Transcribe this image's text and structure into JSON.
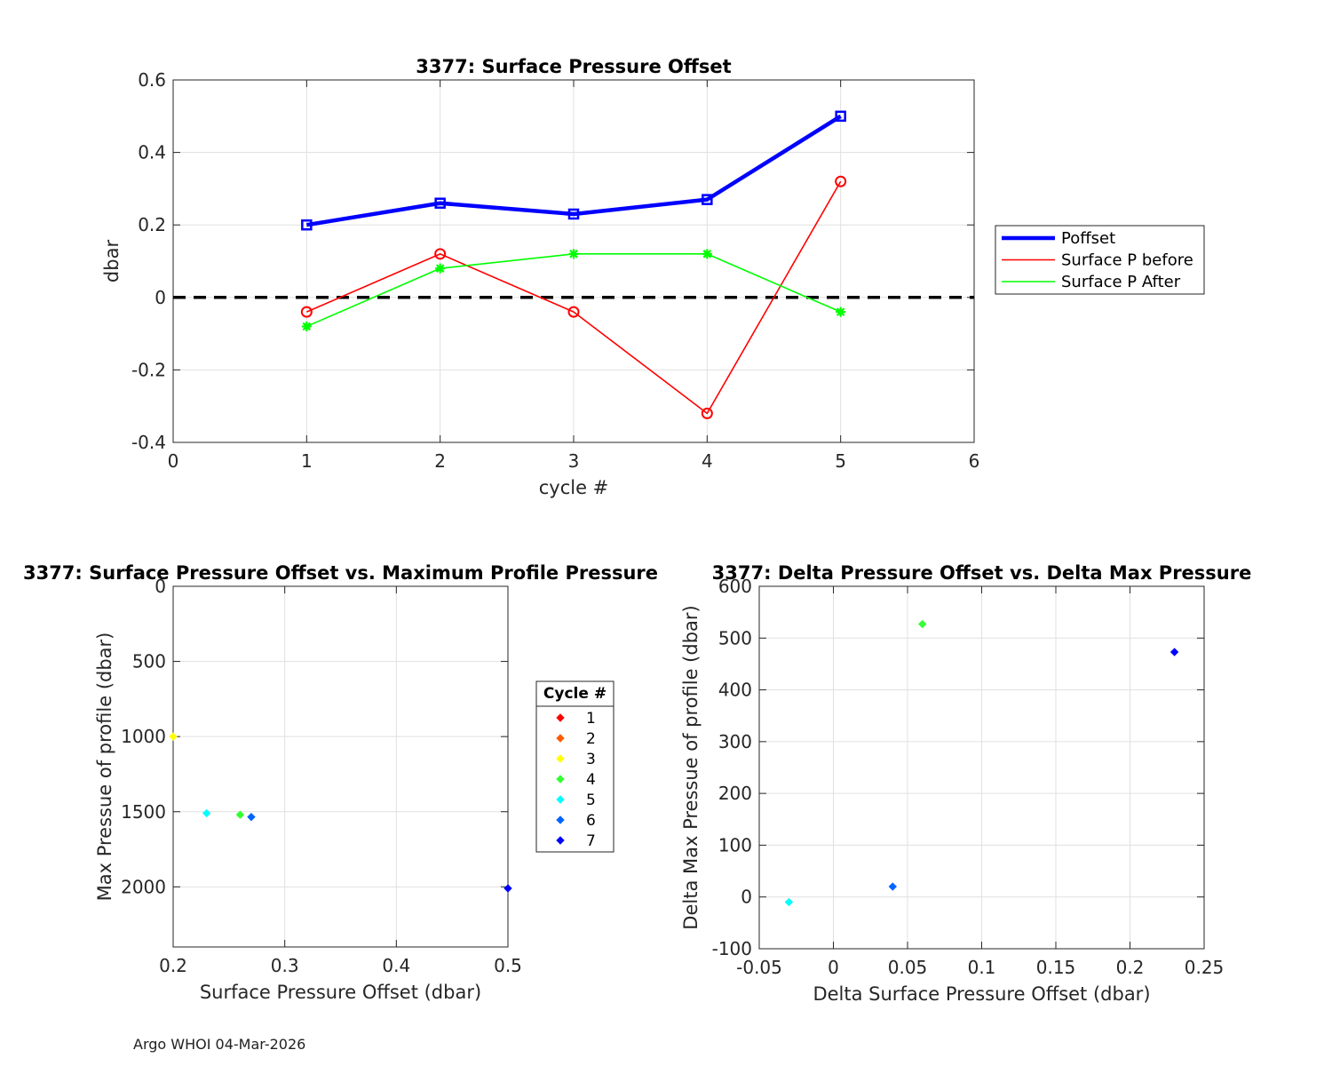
{
  "footer": "Argo WHOI 04-Mar-2026",
  "chart_data": [
    {
      "type": "line",
      "title": "3377: Surface Pressure Offset",
      "xlabel": "cycle #",
      "ylabel": "dbar",
      "xlim": [
        0,
        6
      ],
      "ylim": [
        -0.4,
        0.6
      ],
      "xticks": [
        "0",
        "1",
        "2",
        "3",
        "4",
        "5",
        "6"
      ],
      "yticks": [
        "-0.4",
        "-0.2",
        "0",
        "0.2",
        "0.4",
        "0.6"
      ],
      "grid": true,
      "legend_position": "outside-right",
      "zero_line": {
        "y": 0,
        "style": "dashed",
        "color": "#000000"
      },
      "series": [
        {
          "name": "Poffset",
          "color": "#0000ff",
          "marker": "square",
          "x": [
            1,
            2,
            3,
            4,
            5
          ],
          "y": [
            0.2,
            0.26,
            0.23,
            0.27,
            0.5
          ]
        },
        {
          "name": "Surface P before",
          "color": "#ff0000",
          "marker": "circle",
          "x": [
            1,
            2,
            3,
            4,
            5
          ],
          "y": [
            -0.04,
            0.12,
            -0.04,
            -0.32,
            0.32
          ]
        },
        {
          "name": "Surface P After",
          "color": "#00ff00",
          "marker": "asterisk",
          "x": [
            1,
            2,
            3,
            4,
            5
          ],
          "y": [
            -0.08,
            0.08,
            0.12,
            0.12,
            -0.04
          ]
        }
      ]
    },
    {
      "type": "scatter",
      "title": "3377: Surface Pressure Offset vs. Maximum Profile Pressure",
      "xlabel": "Surface Pressure Offset (dbar)",
      "ylabel": "Max Pressue of profile (dbar)",
      "xlim": [
        0.2,
        0.5
      ],
      "ylim": [
        0,
        2400
      ],
      "y_reversed": true,
      "xticks": [
        "0.2",
        "0.3",
        "0.4",
        "0.5"
      ],
      "yticks": [
        "0",
        "500",
        "1000",
        "1500",
        "2000"
      ],
      "grid": true,
      "legend_title": "Cycle #",
      "legend_position": "outside-right",
      "legend": [
        {
          "label": "1",
          "color": "#ff0000"
        },
        {
          "label": "2",
          "color": "#ff5a00"
        },
        {
          "label": "3",
          "color": "#ffff00"
        },
        {
          "label": "4",
          "color": "#33ff33"
        },
        {
          "label": "5",
          "color": "#00ffff"
        },
        {
          "label": "6",
          "color": "#0064ff"
        },
        {
          "label": "7",
          "color": "#0000ff"
        }
      ],
      "points": [
        {
          "cycle": "3",
          "x": 0.2,
          "y": 1000,
          "color": "#ffff00"
        },
        {
          "cycle": "5",
          "x": 0.23,
          "y": 1510,
          "color": "#00ffff"
        },
        {
          "cycle": "4",
          "x": 0.26,
          "y": 1520,
          "color": "#33ff33"
        },
        {
          "cycle": "6",
          "x": 0.27,
          "y": 1535,
          "color": "#0064ff"
        },
        {
          "cycle": "7",
          "x": 0.5,
          "y": 2010,
          "color": "#0000ff"
        }
      ]
    },
    {
      "type": "scatter",
      "title": "3377: Delta Pressure Offset vs. Delta Max Pressure",
      "xlabel": "Delta Surface Pressure Offset (dbar)",
      "ylabel": "Delta Max Pressue of profile (dbar)",
      "xlim": [
        -0.05,
        0.25
      ],
      "ylim": [
        -100,
        600
      ],
      "xticks": [
        "-0.05",
        "0",
        "0.05",
        "0.1",
        "0.15",
        "0.2",
        "0.25"
      ],
      "yticks": [
        "-100",
        "0",
        "100",
        "200",
        "300",
        "400",
        "500",
        "600"
      ],
      "grid": true,
      "points": [
        {
          "x": 0.06,
          "y": 527,
          "color": "#33ff33"
        },
        {
          "x": 0.23,
          "y": 473,
          "color": "#0000ff"
        },
        {
          "x": 0.04,
          "y": 20,
          "color": "#0064ff"
        },
        {
          "x": -0.03,
          "y": -10,
          "color": "#00ffff"
        }
      ]
    }
  ]
}
